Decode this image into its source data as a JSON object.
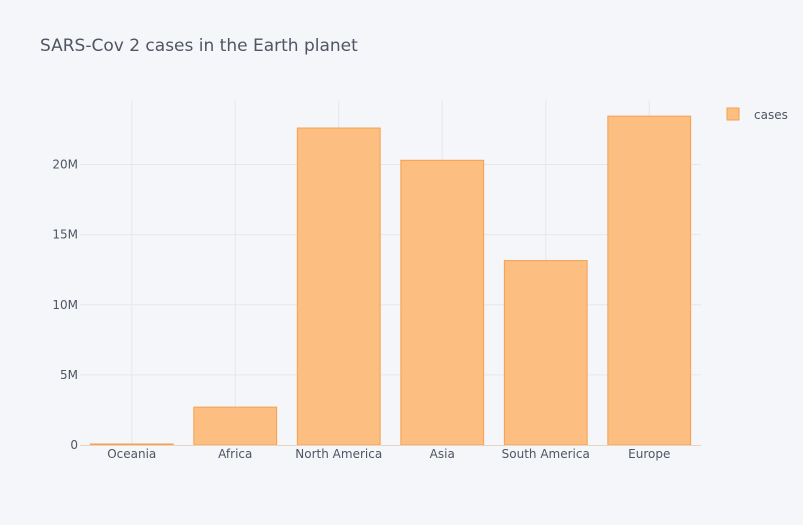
{
  "chart_data": {
    "type": "bar",
    "title": "SARS-Cov 2 cases in the Earth planet",
    "xlabel": "",
    "ylabel": "",
    "categories": [
      "Oceania",
      "Africa",
      "North America",
      "Asia",
      "South America",
      "Europe"
    ],
    "series": [
      {
        "name": "cases",
        "values": [
          60000,
          2700000,
          22600000,
          20300000,
          13150000,
          23450000
        ]
      }
    ],
    "ylim": [
      0,
      24600000
    ],
    "yticks": [
      0,
      5000000,
      10000000,
      15000000,
      20000000
    ],
    "ytick_labels": [
      "0",
      "5M",
      "10M",
      "15M",
      "20M"
    ],
    "grid": true,
    "legend": "top-right",
    "colors": {
      "bar_fill": "#fdbe82",
      "bar_stroke": "#f4a04e",
      "grid": "#e6e7ec",
      "axis_line": "#e8d4c0",
      "text": "#4f5563",
      "background": "#f5f6fa"
    }
  }
}
